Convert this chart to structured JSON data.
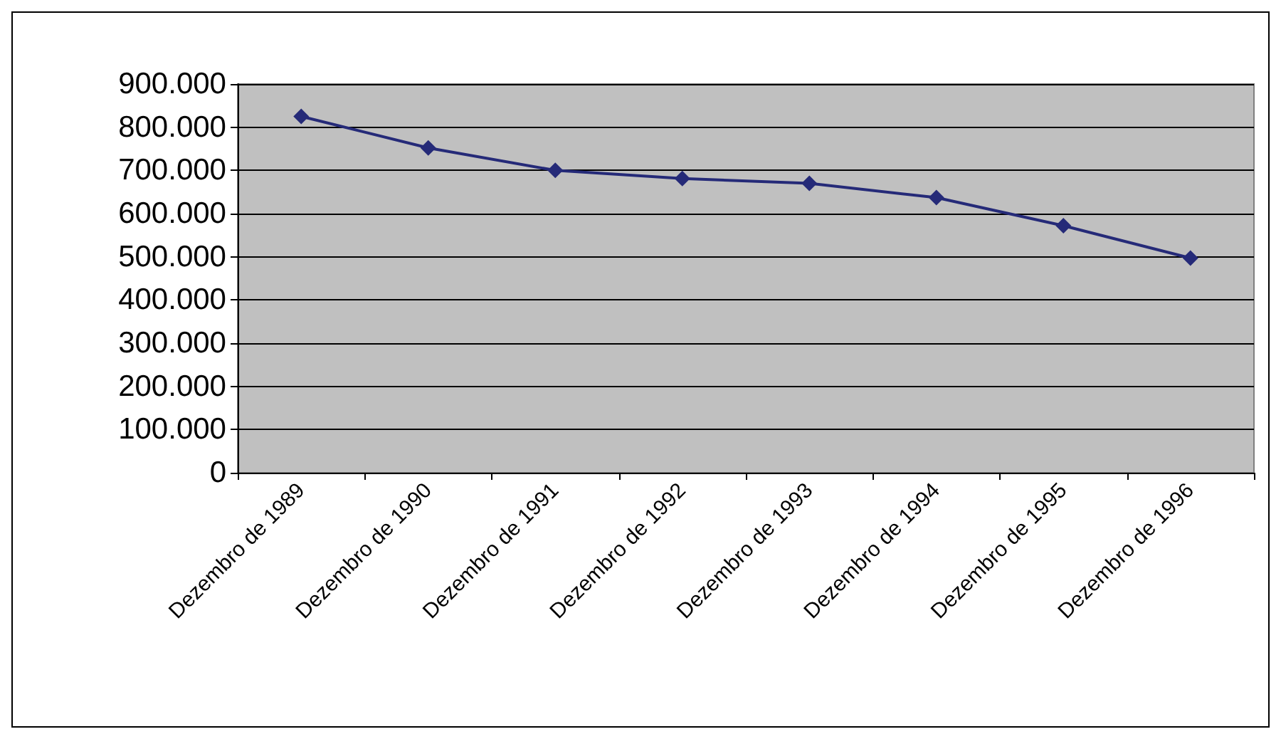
{
  "chart_data": {
    "type": "line",
    "categories": [
      "Dezembro de 1989",
      "Dezembro de 1990",
      "Dezembro de 1991",
      "Dezembro de 1992",
      "Dezembro de 1993",
      "Dezembro de 1994",
      "Dezembro de 1995",
      "Dezembro de 1996"
    ],
    "series": [
      {
        "color": "#252a78",
        "values": [
          825000,
          752000,
          700000,
          681000,
          670000,
          637000,
          572000,
          497000
        ]
      }
    ],
    "ylim": [
      0,
      900000
    ],
    "yticks": [
      {
        "value": 0,
        "label": "0"
      },
      {
        "value": 100000,
        "label": "100.000"
      },
      {
        "value": 200000,
        "label": "200.000"
      },
      {
        "value": 300000,
        "label": "300.000"
      },
      {
        "value": 400000,
        "label": "400.000"
      },
      {
        "value": 500000,
        "label": "500.000"
      },
      {
        "value": 600000,
        "label": "600.000"
      },
      {
        "value": 700000,
        "label": "700.000"
      },
      {
        "value": 800000,
        "label": "800.000"
      },
      {
        "value": 900000,
        "label": "900.000"
      }
    ],
    "grid": "y",
    "marker": "diamond",
    "line_style": "solid"
  }
}
